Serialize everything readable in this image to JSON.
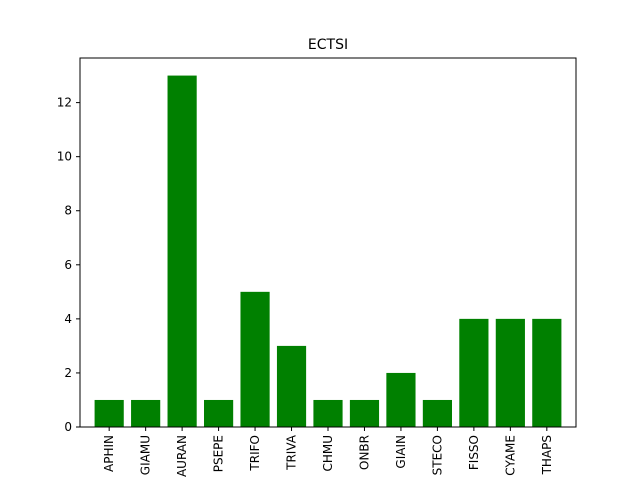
{
  "colors": {
    "bar": "#008000",
    "axis": "#000000",
    "background": "#ffffff"
  },
  "chart_data": {
    "type": "bar",
    "title": "ECTSI",
    "xlabel": "",
    "ylabel": "",
    "categories": [
      "APHIN",
      "GIAMU",
      "AURAN",
      "PSEPE",
      "TRIFO",
      "TRIVA",
      "CHMU",
      "ONBR",
      "GIAIN",
      "STECO",
      "FISSO",
      "CYAME",
      "THAPS"
    ],
    "values": [
      1,
      1,
      13,
      1,
      5,
      3,
      1,
      1,
      2,
      1,
      4,
      4,
      4
    ],
    "ylim": [
      0,
      13.65
    ],
    "yticks": [
      0,
      2,
      4,
      6,
      8,
      10,
      12
    ],
    "grid": false,
    "legend": "none"
  }
}
